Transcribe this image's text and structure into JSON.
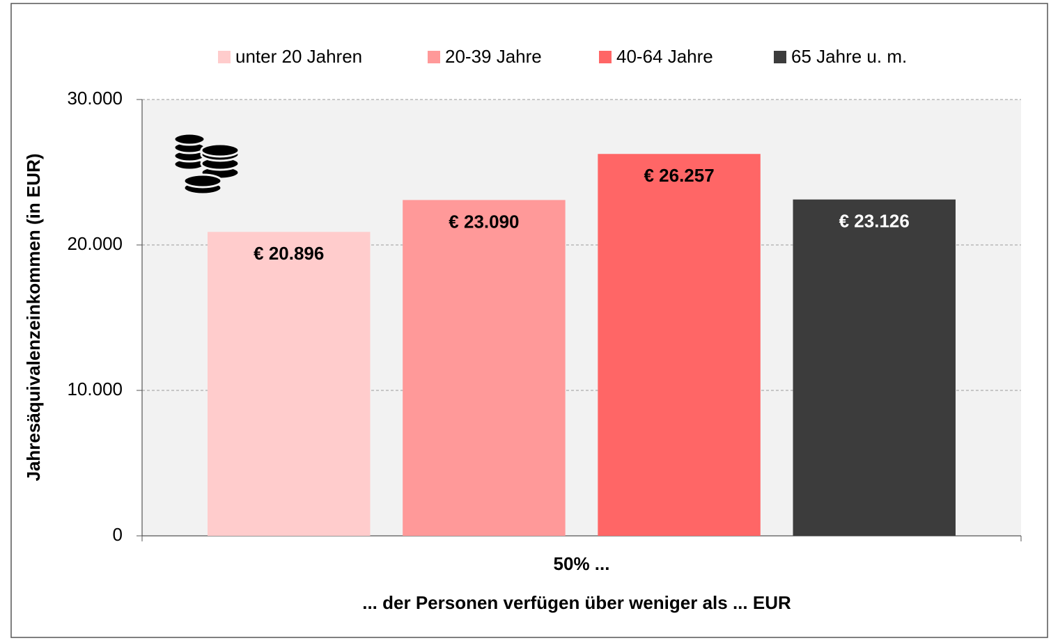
{
  "chart_data": {
    "type": "bar",
    "categories": [
      "50% ..."
    ],
    "x_label": "... der Personen verfügen über weniger als ... EUR",
    "y_label": "Jahresäquivalenzeinkommen (in EUR)",
    "series": [
      {
        "name": "unter 20 Jahren",
        "color": "#ffcccc",
        "label_color": "#000000",
        "values": [
          20896
        ],
        "value_labels": [
          "€ 20.896"
        ]
      },
      {
        "name": "20-39 Jahre",
        "color": "#ff9999",
        "label_color": "#000000",
        "values": [
          23090
        ],
        "value_labels": [
          "€ 23.090"
        ]
      },
      {
        "name": "40-64 Jahre",
        "color": "#ff6666",
        "label_color": "#000000",
        "values": [
          26257
        ],
        "value_labels": [
          "€ 26.257"
        ]
      },
      {
        "name": "65 Jahre u. m.",
        "color": "#3c3c3c",
        "label_color": "#ffffff",
        "values": [
          23126
        ],
        "value_labels": [
          "€ 23.126"
        ]
      }
    ],
    "ylim": [
      0,
      30000
    ],
    "yticks": [
      0,
      {
        "value": 10000,
        "label": "10.000"
      },
      {
        "value": 20000,
        "label": "20.000"
      },
      {
        "value": 30000,
        "label": "30.000"
      }
    ],
    "grid": true,
    "legend": "top"
  }
}
